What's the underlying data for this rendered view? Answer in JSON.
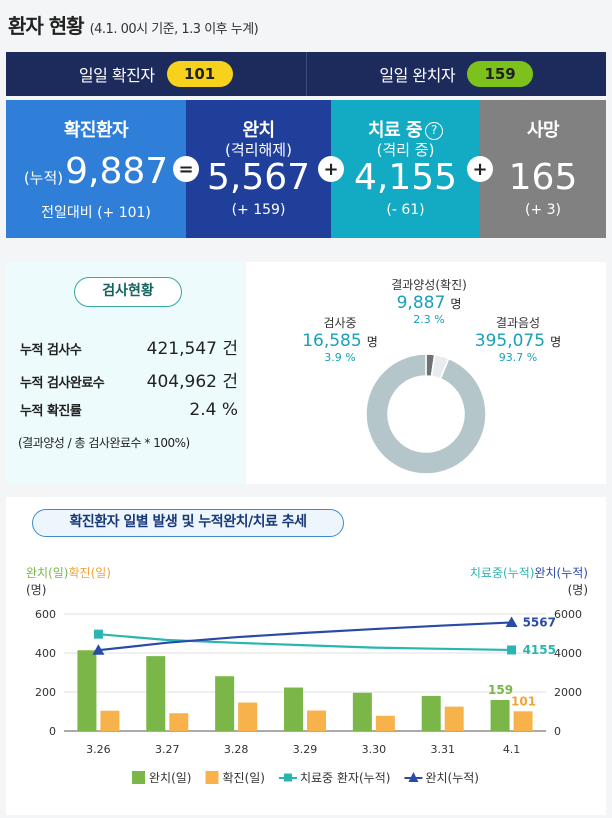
{
  "header": {
    "title": "환자 현황",
    "subtitle": "(4.1. 00시 기준, 1.3 이후 누계)"
  },
  "daily": {
    "confirmed_label": "일일 확진자",
    "confirmed_value": "101",
    "released_label": "일일 완치자",
    "released_value": "159"
  },
  "stats": {
    "total": {
      "title": "확진환자",
      "prefix": "(누적)",
      "value": "9,887",
      "foot": "전일대비 (+ 101)"
    },
    "released": {
      "title": "완치",
      "sub": "(격리해제)",
      "value": "5,567",
      "foot": "(+ 159)"
    },
    "treatment": {
      "title": "치료 중",
      "sub": "(격리 중)",
      "value": "4,155",
      "foot": "(- 61)",
      "help_icon": "question-circle"
    },
    "deaths": {
      "title": "사망",
      "value": "165",
      "foot": "(+ 3)"
    },
    "operators": {
      "eq": "=",
      "plus": "+"
    }
  },
  "tests": {
    "title": "검사현황",
    "rows": [
      {
        "label": "누적 검사수",
        "value": "421,547 건"
      },
      {
        "label": "누적 검사완료수",
        "value": "404,962 건"
      },
      {
        "label": "누적 확진률",
        "value": "2.4 %"
      }
    ],
    "note": "(결과양성 / 총 검사완료수 * 100%)"
  },
  "pie": {
    "testing": {
      "name": "검사중",
      "value": "16,585",
      "unit": "명",
      "pct": "3.9 %",
      "share": 3.9,
      "color": "#e9ecee"
    },
    "positive": {
      "name": "결과양성(확진)",
      "value": "9,887",
      "unit": "명",
      "pct": "2.3 %",
      "share": 2.3,
      "color": "#6f7275"
    },
    "negative": {
      "name": "결과음성",
      "value": "395,075",
      "unit": "명",
      "pct": "93.7 %",
      "share": 93.7,
      "color": "#b5c6cb"
    }
  },
  "chart_title": "확진환자 일별 발생 및 누적완치/치료 추세",
  "chart_data": {
    "type": "bar",
    "categories": [
      "3.26",
      "3.27",
      "3.28",
      "3.29",
      "3.30",
      "3.31",
      "4.1"
    ],
    "left_axis": {
      "label_release": "완치(일)",
      "label_confirm": "확진(일)",
      "unit": "(명)",
      "ylim": [
        0,
        600
      ],
      "ticks": [
        "0",
        "200",
        "400",
        "600"
      ]
    },
    "right_axis": {
      "label_treat": "치료중(누적)",
      "label_release": "완치(누적)",
      "unit": "(명)",
      "ylim": [
        0,
        6000
      ],
      "ticks": [
        "0",
        "2000",
        "4000",
        "6000"
      ]
    },
    "series": [
      {
        "name": "완치(일)",
        "kind": "bar",
        "axis": "left",
        "color": "#7ab648",
        "values": [
          414,
          384,
          281,
          223,
          196,
          180,
          159
        ]
      },
      {
        "name": "확진(일)",
        "kind": "bar",
        "axis": "left",
        "color": "#f7b24b",
        "values": [
          104,
          91,
          146,
          105,
          78,
          125,
          101
        ]
      },
      {
        "name": "치료중 환자(누적)",
        "kind": "line",
        "axis": "right",
        "color": "#2bb5b0",
        "values": [
          4966,
          4665,
          4523,
          4398,
          4275,
          4216,
          4155
        ]
      },
      {
        "name": "완치(누적)",
        "kind": "line",
        "axis": "right",
        "color": "#2a4aa8",
        "values": [
          4144,
          4528,
          4811,
          5033,
          5228,
          5408,
          5567
        ]
      }
    ],
    "annotations": {
      "last_release_daily": "159",
      "last_confirm_daily": "101",
      "last_release_cum": "5567",
      "last_treat_cum": "4155"
    },
    "legend_position": "bottom",
    "grid": "horizontal"
  }
}
